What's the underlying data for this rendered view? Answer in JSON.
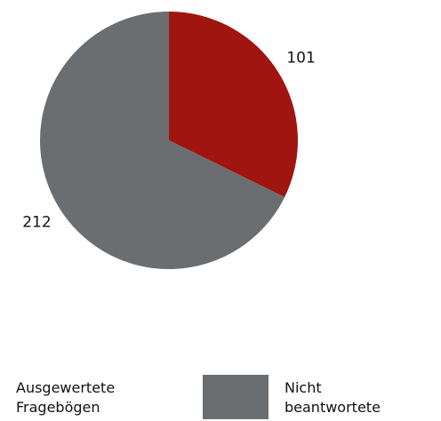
{
  "chart_data": {
    "type": "pie",
    "categories": [
      "Ausgewertete Fragebögen",
      "Nicht beantwortete Fragebögen"
    ],
    "values": [
      101,
      212
    ],
    "colors": [
      "#a0150f",
      "#6b6e70"
    ]
  }
}
